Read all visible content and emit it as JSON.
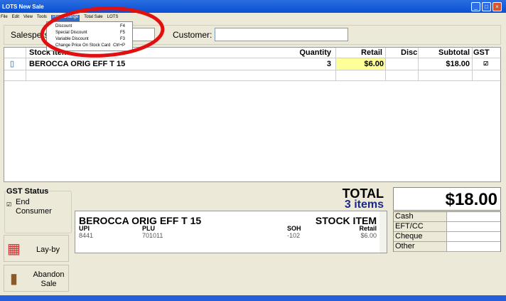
{
  "window": {
    "title": "LOTS New Sale"
  },
  "menu": [
    "File",
    "Edit",
    "View",
    "Tools",
    "Price Change",
    "Total Sale",
    "LOTS"
  ],
  "dropdown": [
    {
      "label": "Discount",
      "shortcut": "F4"
    },
    {
      "label": "Special Discount",
      "shortcut": "F5"
    },
    {
      "label": "Variable Discount",
      "shortcut": "F3"
    },
    {
      "label": "Change Price On Stock Card",
      "shortcut": "Ctrl+P"
    }
  ],
  "form": {
    "salesperson_label": "Salesperson:",
    "customer_label": "Customer:",
    "customer_value": ""
  },
  "grid": {
    "headers": [
      "Stock Item",
      "Quantity",
      "Retail",
      "Disc",
      "Subtotal",
      "GST"
    ],
    "rows": [
      {
        "item": "BEROCCA ORIG EFF T 15",
        "quantity": "3",
        "retail": "$6.00",
        "disc": "",
        "subtotal": "$18.00",
        "gst": true
      }
    ]
  },
  "gst_status": {
    "title": "GST Status",
    "option": "End Consumer",
    "checked": true
  },
  "buttons": {
    "layby": "Lay-by",
    "abandon": "Abandon Sale"
  },
  "info": {
    "name": "BEROCCA ORIG EFF T 15",
    "type": "STOCK ITEM",
    "upi_label": "UPI",
    "upi": "8441",
    "plu_label": "PLU",
    "plu": "701011",
    "soh_label": "SOH",
    "soh": "-102",
    "retail_label": "Retail",
    "retail": "$6.00"
  },
  "total": {
    "label": "TOTAL",
    "items": "3 items",
    "amount": "$18.00"
  },
  "payments": [
    "Cash",
    "EFT/CC",
    "Cheque",
    "Other"
  ],
  "colors": {
    "highlight": "#ffff99",
    "annotation": "#e01010",
    "titlebar": "#0a4fd4"
  }
}
